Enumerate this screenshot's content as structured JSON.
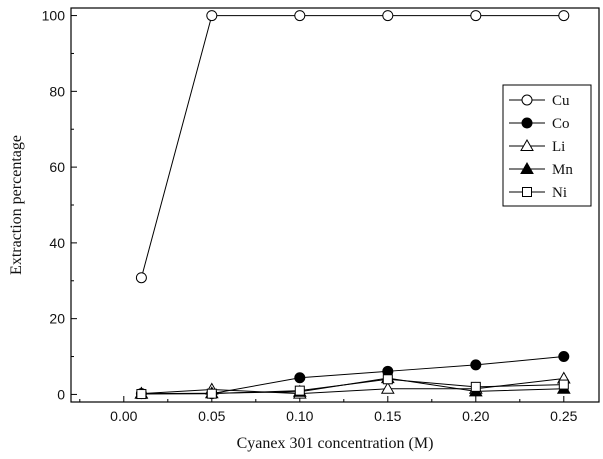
{
  "chart_data": {
    "type": "line",
    "title": "",
    "xlabel": "Cyanex 301 concentration (M)",
    "ylabel": "Extraction percentage",
    "xlim": [
      -0.03,
      0.27
    ],
    "ylim": [
      -2,
      102
    ],
    "x_ticks": [
      "0.00",
      "0.05",
      "0.10",
      "0.15",
      "0.20",
      "0.25"
    ],
    "y_ticks": [
      "0",
      "20",
      "40",
      "60",
      "80",
      "100"
    ],
    "grid": false,
    "legend_position": "right",
    "x": [
      0.01,
      0.05,
      0.1,
      0.15,
      0.2,
      0.25
    ],
    "series": [
      {
        "name": "Cu",
        "marker": "open-circle",
        "values": [
          30.8,
          100,
          100,
          100,
          100,
          100
        ]
      },
      {
        "name": "Co",
        "marker": "filled-circle",
        "values": [
          0.2,
          0.2,
          4.4,
          6.1,
          7.8,
          10.0
        ]
      },
      {
        "name": "Li",
        "marker": "open-triangle",
        "values": [
          0.2,
          1.3,
          0.2,
          1.5,
          1.5,
          4.2
        ]
      },
      {
        "name": "Mn",
        "marker": "filled-triangle",
        "values": [
          0.2,
          0.3,
          0.7,
          4.3,
          0.8,
          1.5
        ]
      },
      {
        "name": "Ni",
        "marker": "open-square",
        "values": [
          0.1,
          0.2,
          1.0,
          4.0,
          2.0,
          2.6
        ]
      }
    ]
  }
}
